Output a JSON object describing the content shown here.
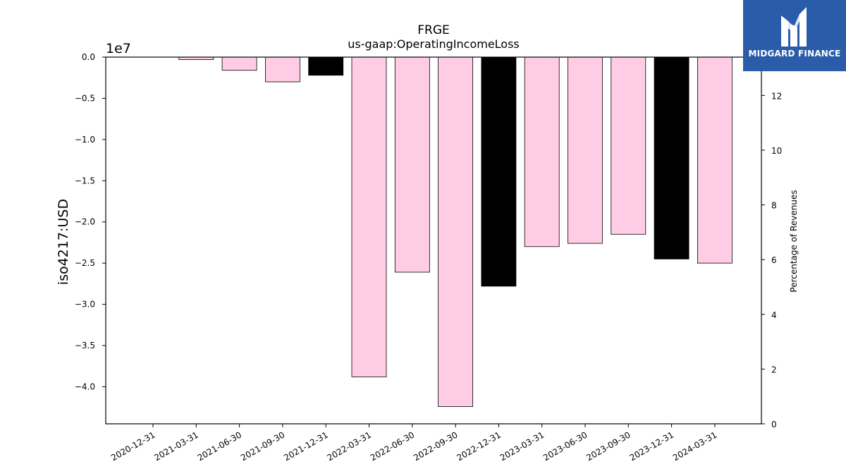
{
  "chart_data": {
    "type": "bar",
    "title": "FRGE",
    "subtitle": "us-gaap:OperatingIncomeLoss",
    "ylabel": "iso4217:USD",
    "y_offset_label": "1e7",
    "y2label": "Percentage of Revenues",
    "ylim": [
      -4.45,
      0
    ],
    "y2lim": [
      0,
      13.4
    ],
    "yticks": [
      "0.0",
      "−0.5",
      "−1.0",
      "−1.5",
      "−2.0",
      "−2.5",
      "−3.0",
      "−3.5",
      "−4.0"
    ],
    "y2ticks": [
      "0",
      "2",
      "4",
      "6",
      "8",
      "10",
      "12"
    ],
    "categories": [
      "2020-12-31",
      "2021-03-31",
      "2021-06-30",
      "2021-09-30",
      "2021-12-31",
      "2022-03-31",
      "2022-06-30",
      "2022-09-30",
      "2022-12-31",
      "2023-03-31",
      "2023-06-30",
      "2023-09-30",
      "2023-12-31",
      "2024-03-31"
    ],
    "values": [
      0,
      -0.03,
      -0.16,
      -0.3,
      -0.22,
      -3.88,
      -2.61,
      -4.24,
      -2.78,
      -2.3,
      -2.26,
      -2.15,
      -2.45,
      -2.5
    ],
    "bar_colors": [
      "#ffcce6",
      "#ffcce6",
      "#ffcce6",
      "#ffcce6",
      "#000000",
      "#ffcce6",
      "#ffcce6",
      "#ffcce6",
      "#000000",
      "#ffcce6",
      "#ffcce6",
      "#ffcce6",
      "#000000",
      "#ffcce6"
    ],
    "grid": false
  },
  "logo": {
    "text": "MIDGARD FINANCE",
    "color": "#2a5caa"
  }
}
